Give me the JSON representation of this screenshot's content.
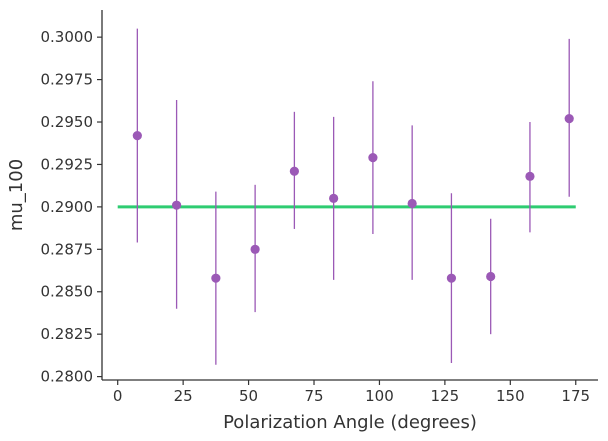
{
  "chart_data": {
    "type": "scatter",
    "title": "",
    "xlabel": "Polarization Angle (degrees)",
    "ylabel": "mu_100",
    "xlim": [
      -6,
      183.5
    ],
    "ylim": [
      0.2798,
      0.3016
    ],
    "xticks": [
      0,
      25,
      50,
      75,
      100,
      125,
      150,
      175
    ],
    "xtick_labels": [
      "0",
      "25",
      "50",
      "75",
      "100",
      "125",
      "150",
      "175"
    ],
    "yticks": [
      0.28,
      0.2825,
      0.285,
      0.2875,
      0.29,
      0.2925,
      0.295,
      0.2975,
      0.3
    ],
    "ytick_labels": [
      "0.2800",
      "0.2825",
      "0.2850",
      "0.2875",
      "0.2900",
      "0.2925",
      "0.2950",
      "0.2975",
      "0.3000"
    ],
    "grid": false,
    "series": [
      {
        "type": "errorbar",
        "color": "#9b59b6",
        "points": [
          {
            "x": 7.5,
            "y": 0.2942,
            "ylow": 0.2879,
            "yhigh": 0.3005
          },
          {
            "x": 22.5,
            "y": 0.2901,
            "ylow": 0.284,
            "yhigh": 0.2963
          },
          {
            "x": 37.5,
            "y": 0.2858,
            "ylow": 0.2807,
            "yhigh": 0.2909
          },
          {
            "x": 52.5,
            "y": 0.2875,
            "ylow": 0.2838,
            "yhigh": 0.2913
          },
          {
            "x": 67.5,
            "y": 0.2921,
            "ylow": 0.2887,
            "yhigh": 0.2956
          },
          {
            "x": 82.5,
            "y": 0.2905,
            "ylow": 0.2857,
            "yhigh": 0.2953
          },
          {
            "x": 97.5,
            "y": 0.2929,
            "ylow": 0.2884,
            "yhigh": 0.2974
          },
          {
            "x": 112.5,
            "y": 0.2902,
            "ylow": 0.2857,
            "yhigh": 0.2948
          },
          {
            "x": 127.5,
            "y": 0.2858,
            "ylow": 0.2808,
            "yhigh": 0.2908
          },
          {
            "x": 142.5,
            "y": 0.2859,
            "ylow": 0.2825,
            "yhigh": 0.2893
          },
          {
            "x": 157.5,
            "y": 0.2918,
            "ylow": 0.2885,
            "yhigh": 0.295
          },
          {
            "x": 172.5,
            "y": 0.2952,
            "ylow": 0.2906,
            "yhigh": 0.2999
          }
        ]
      },
      {
        "type": "line",
        "color": "#2ecc71",
        "points": [
          {
            "x": 0,
            "y": 0.29
          },
          {
            "x": 175,
            "y": 0.29
          }
        ]
      }
    ]
  },
  "colors": {
    "axis": "#333333",
    "points": "#9b59b6",
    "fit_line": "#2ecc71",
    "background": "#ffffff"
  }
}
